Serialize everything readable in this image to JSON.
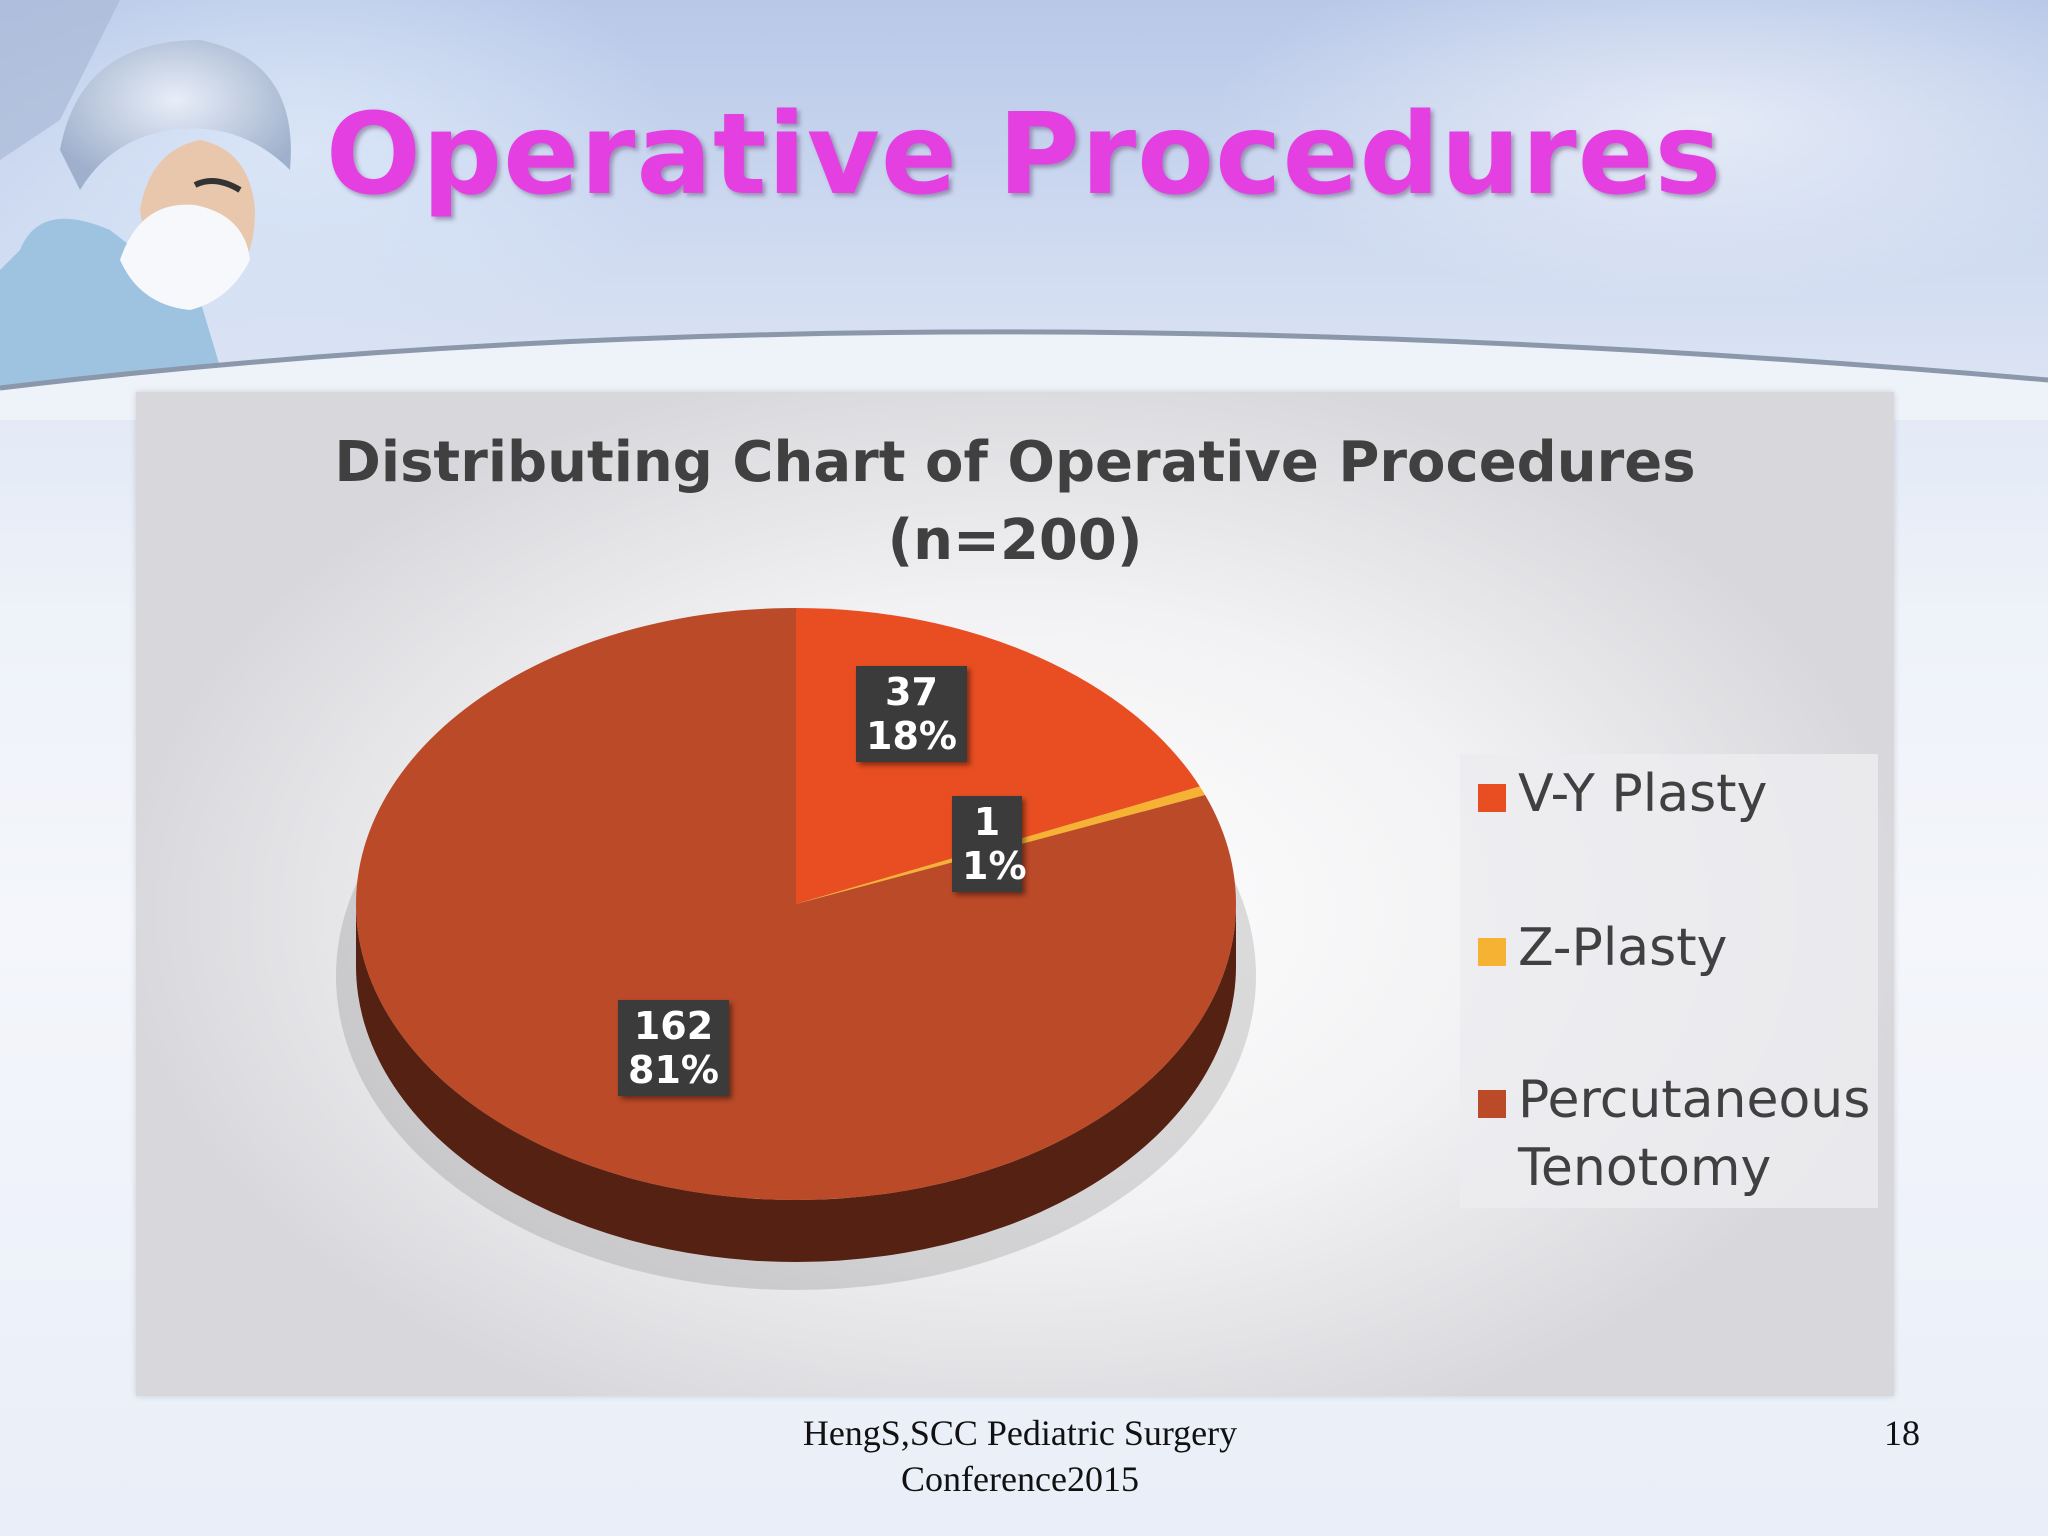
{
  "slide": {
    "title": "Operative Procedures",
    "footer": "HengS,SCC Pediatric Surgery Conference2015",
    "page_number": "18",
    "title_color": "#e43fe0"
  },
  "chart_data": {
    "type": "pie",
    "title": "Distributing Chart of Operative Procedures (n=200)",
    "title_lines": [
      "Distributing Chart of Operative Procedures",
      "(n=200)"
    ],
    "categories": [
      "V-Y Plasty",
      "Z-Plasty",
      "Percutaneous Tenotomy"
    ],
    "values": [
      37,
      1,
      162
    ],
    "percent_labels": [
      "18%",
      "1%",
      "81%"
    ],
    "colors": [
      "#e84e22",
      "#f5b233",
      "#bb4a28"
    ],
    "legend_position": "right",
    "data_labels": [
      {
        "value": "37",
        "percent": "18%"
      },
      {
        "value": "1",
        "percent": "1%"
      },
      {
        "value": "162",
        "percent": "81%"
      }
    ]
  }
}
